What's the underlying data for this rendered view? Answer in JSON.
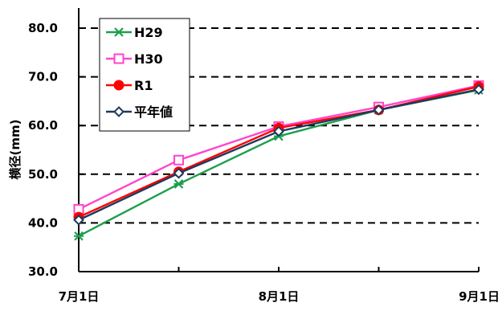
{
  "chart_data": {
    "type": "line",
    "title": "",
    "xlabel": "",
    "ylabel": "横径(mm)",
    "ylim": [
      30.0,
      80.0
    ],
    "y_ticks": [
      "30.0",
      "40.0",
      "50.0",
      "60.0",
      "70.0",
      "80.0"
    ],
    "y_tick_values": [
      30,
      40,
      50,
      60,
      70,
      80
    ],
    "gridlines": "dashed",
    "grid_values": [
      40,
      50,
      60,
      70,
      80
    ],
    "x_ticks": [
      "7月1日",
      "8月1日",
      "9月1日"
    ],
    "x_tick_positions": [
      0,
      2,
      4
    ],
    "x_count": 5,
    "legend_position": "top-left",
    "series": [
      {
        "name": "H29",
        "values": [
          37.3,
          48.0,
          57.8,
          63.2,
          67.3
        ],
        "color": "#1f9e4e",
        "marker": "x-mark"
      },
      {
        "name": "H30",
        "values": [
          42.8,
          52.9,
          59.8,
          63.8,
          68.2
        ],
        "color": "#ff44cc",
        "marker": "open-square"
      },
      {
        "name": "R1",
        "values": [
          41.2,
          50.5,
          59.5,
          63.2,
          68.0
        ],
        "color": "#ff0000",
        "marker": "filled-circle"
      },
      {
        "name": "平年値",
        "values": [
          40.6,
          50.2,
          58.8,
          63.2,
          67.4
        ],
        "color": "#1f3a5f",
        "marker": "open-diamond"
      }
    ]
  }
}
